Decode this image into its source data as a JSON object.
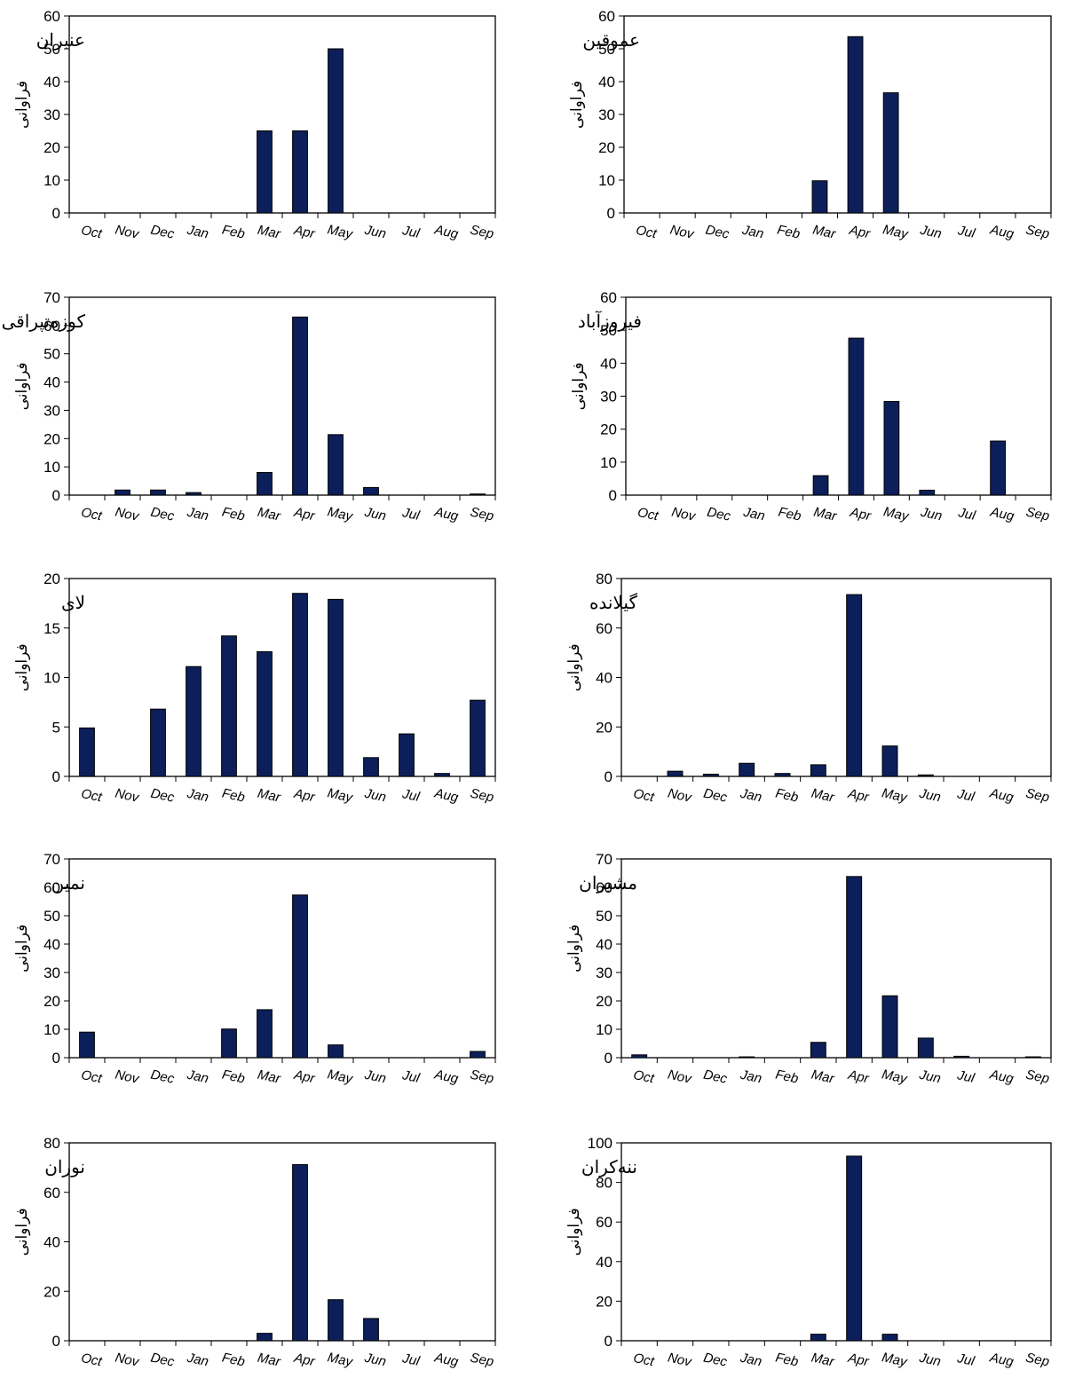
{
  "chart_data": [
    {
      "type": "bar",
      "title": "عنبران",
      "ylabel": "فراوانی",
      "ylim": [
        0,
        60
      ],
      "yticks": [
        0,
        10,
        20,
        30,
        40,
        50,
        60
      ],
      "categories": [
        "Oct",
        "Nov",
        "Dec",
        "Jan",
        "Feb",
        "Mar",
        "Apr",
        "May",
        "Jun",
        "Jul",
        "Aug",
        "Sep"
      ],
      "values": [
        0,
        0,
        0,
        0,
        0,
        25,
        25,
        50,
        0,
        0,
        0,
        0
      ]
    },
    {
      "type": "bar",
      "title": "عموقین",
      "ylabel": "فراوانی",
      "ylim": [
        0,
        60
      ],
      "yticks": [
        0,
        10,
        20,
        30,
        40,
        50,
        60
      ],
      "categories": [
        "Oct",
        "Nov",
        "Dec",
        "Jan",
        "Feb",
        "Mar",
        "Apr",
        "May",
        "Jun",
        "Jul",
        "Aug",
        "Sep"
      ],
      "values": [
        0,
        0,
        0,
        0,
        0,
        9.8,
        53.7,
        36.6,
        0,
        0,
        0,
        0
      ]
    },
    {
      "type": "bar",
      "title": "کوزه‌تپراقی",
      "ylabel": "فراوانی",
      "ylim": [
        0,
        70
      ],
      "yticks": [
        0,
        10,
        20,
        30,
        40,
        50,
        60,
        70
      ],
      "categories": [
        "Oct",
        "Nov",
        "Dec",
        "Jan",
        "Feb",
        "Mar",
        "Apr",
        "May",
        "Jun",
        "Jul",
        "Aug",
        "Sep"
      ],
      "values": [
        0,
        1.8,
        1.8,
        0.9,
        0,
        8,
        63,
        21.4,
        2.7,
        0,
        0,
        0.4
      ]
    },
    {
      "type": "bar",
      "title": "فیروزآباد",
      "ylabel": "فراوانی",
      "ylim": [
        0,
        60
      ],
      "yticks": [
        0,
        10,
        20,
        30,
        40,
        50,
        60
      ],
      "categories": [
        "Oct",
        "Nov",
        "Dec",
        "Jan",
        "Feb",
        "Mar",
        "Apr",
        "May",
        "Jun",
        "Jul",
        "Aug",
        "Sep"
      ],
      "values": [
        0,
        0,
        0,
        0,
        0,
        5.9,
        47.6,
        28.4,
        1.5,
        0,
        16.4,
        0
      ]
    },
    {
      "type": "bar",
      "title": "لای",
      "ylabel": "فراوانی",
      "ylim": [
        0,
        20
      ],
      "yticks": [
        0,
        5,
        10,
        15,
        20
      ],
      "categories": [
        "Oct",
        "Nov",
        "Dec",
        "Jan",
        "Feb",
        "Mar",
        "Apr",
        "May",
        "Jun",
        "Jul",
        "Aug",
        "Sep"
      ],
      "values": [
        4.9,
        0,
        6.8,
        11.1,
        14.2,
        12.6,
        18.5,
        17.9,
        1.9,
        4.3,
        0.3,
        7.7
      ]
    },
    {
      "type": "bar",
      "title": "گیلانده",
      "ylabel": "فراوانی",
      "ylim": [
        0,
        80
      ],
      "yticks": [
        0,
        20,
        40,
        60,
        80
      ],
      "categories": [
        "Oct",
        "Nov",
        "Dec",
        "Jan",
        "Feb",
        "Mar",
        "Apr",
        "May",
        "Jun",
        "Jul",
        "Aug",
        "Sep"
      ],
      "values": [
        0,
        2.1,
        0.9,
        5.3,
        1.2,
        4.7,
        73.5,
        12.3,
        0.6,
        0,
        0,
        0
      ]
    },
    {
      "type": "bar",
      "title": "نمین",
      "ylabel": "فراوانی",
      "ylim": [
        0,
        70
      ],
      "yticks": [
        0,
        10,
        20,
        30,
        40,
        50,
        60,
        70
      ],
      "categories": [
        "Oct",
        "Nov",
        "Dec",
        "Jan",
        "Feb",
        "Mar",
        "Apr",
        "May",
        "Jun",
        "Jul",
        "Aug",
        "Sep"
      ],
      "values": [
        9,
        0,
        0,
        0,
        10.1,
        16.9,
        57.3,
        4.5,
        0,
        0,
        0,
        2.2
      ]
    },
    {
      "type": "bar",
      "title": "مشیران",
      "ylabel": "فراوانی",
      "ylim": [
        0,
        70
      ],
      "yticks": [
        0,
        10,
        20,
        30,
        40,
        50,
        60,
        70
      ],
      "categories": [
        "Oct",
        "Nov",
        "Dec",
        "Jan",
        "Feb",
        "Mar",
        "Apr",
        "May",
        "Jun",
        "Jul",
        "Aug",
        "Sep"
      ],
      "values": [
        1,
        0,
        0,
        0.3,
        0,
        5.4,
        63.8,
        21.8,
        6.9,
        0.5,
        0,
        0.3
      ]
    },
    {
      "type": "bar",
      "title": "نوران",
      "ylabel": "فراوانی",
      "ylim": [
        0,
        80
      ],
      "yticks": [
        0,
        20,
        40,
        60,
        80
      ],
      "categories": [
        "Oct",
        "Nov",
        "Dec",
        "Jan",
        "Feb",
        "Mar",
        "Apr",
        "May",
        "Jun",
        "Jul",
        "Aug",
        "Sep"
      ],
      "values": [
        0,
        0,
        0,
        0,
        0,
        3,
        71.2,
        16.6,
        9,
        0,
        0,
        0
      ]
    },
    {
      "type": "bar",
      "title": "ننه‌کران",
      "ylabel": "فراوانی",
      "ylim": [
        0,
        100
      ],
      "yticks": [
        0,
        20,
        40,
        60,
        80,
        100
      ],
      "categories": [
        "Oct",
        "Nov",
        "Dec",
        "Jan",
        "Feb",
        "Mar",
        "Apr",
        "May",
        "Jun",
        "Jul",
        "Aug",
        "Sep"
      ],
      "values": [
        0,
        0,
        0,
        0,
        0,
        3.3,
        93.3,
        3.3,
        0,
        0,
        0,
        0
      ]
    }
  ],
  "colors": {
    "bar_fill": "#0c1f5a",
    "bar_stroke": "#000000",
    "axis": "#000000"
  }
}
